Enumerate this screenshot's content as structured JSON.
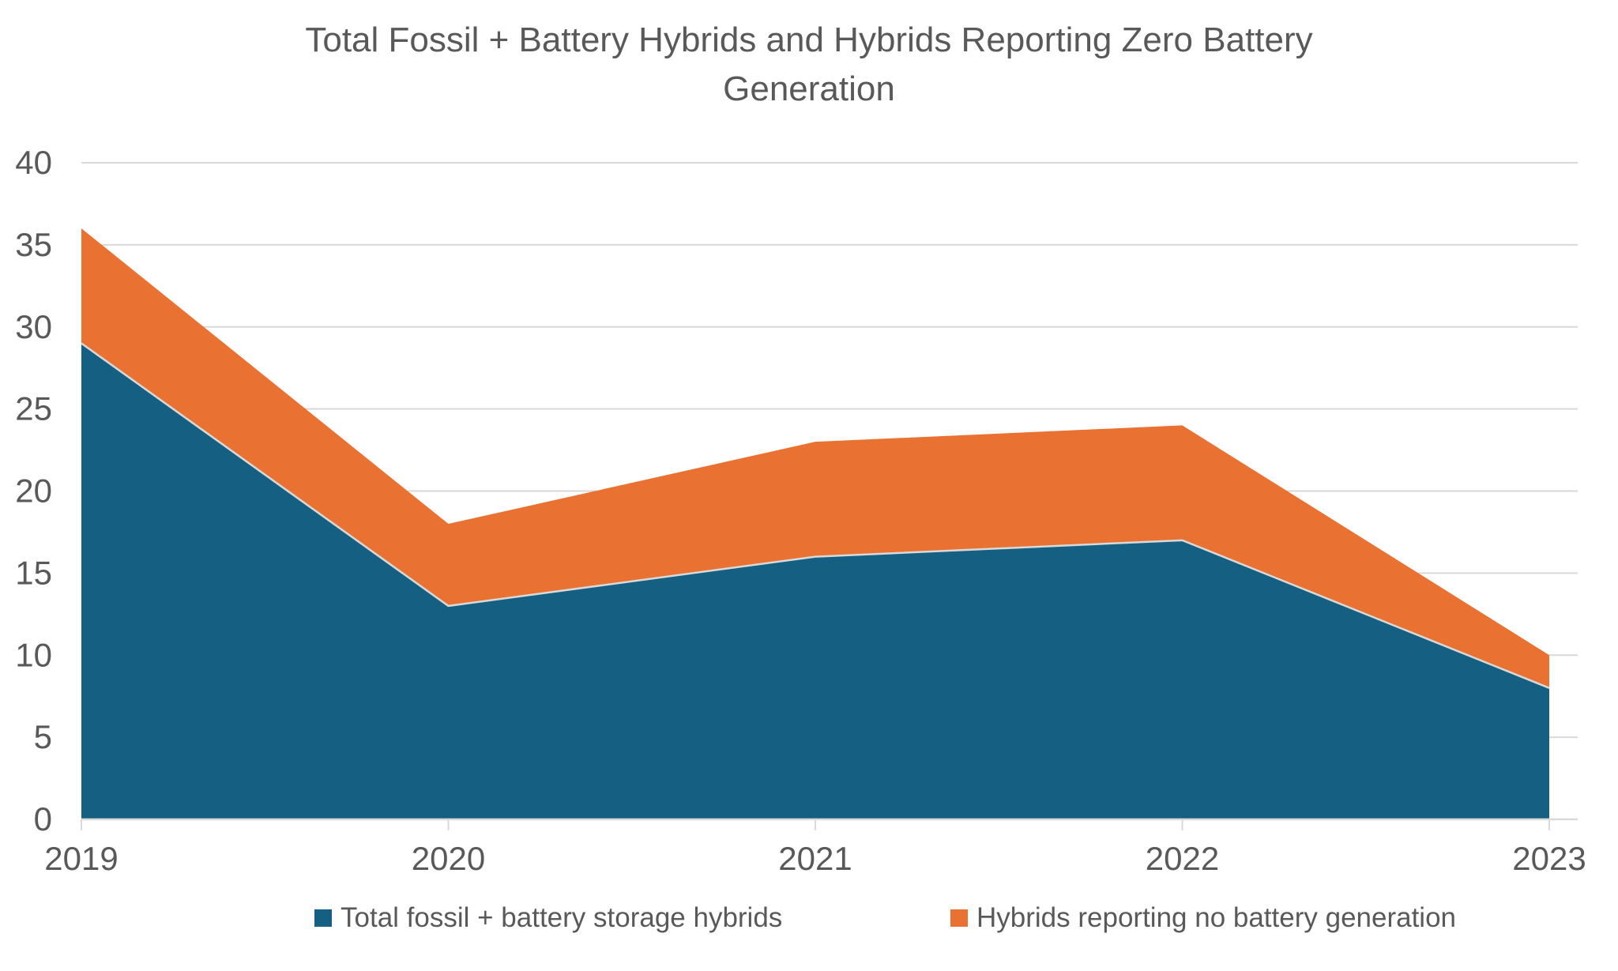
{
  "title": "Total Fossil + Battery Hybrids and Hybrids Reporting Zero Battery Generation",
  "title_lines": [
    "Total Fossil + Battery Hybrids and Hybrids Reporting Zero Battery",
    "Generation"
  ],
  "colors": {
    "series_blue": "#156082",
    "series_orange": "#E97132",
    "grid": "#D9D9D9",
    "axis_text": "#595959",
    "title_text": "#595959"
  },
  "chart_data": {
    "type": "area",
    "stacked": true,
    "title": "Total Fossil + Battery Hybrids and Hybrids Reporting Zero Battery Generation",
    "categories": [
      "2019",
      "2020",
      "2021",
      "2022",
      "2023"
    ],
    "series": [
      {
        "name": "Total fossil + battery storage hybrids",
        "color": "#156082",
        "values": [
          29,
          13,
          16,
          17,
          8
        ]
      },
      {
        "name": "Hybrids reporting no battery generation",
        "color": "#E97132",
        "values": [
          7,
          5,
          7,
          7,
          2
        ]
      }
    ],
    "stacked_totals": [
      36,
      18,
      23,
      24,
      10
    ],
    "xlabel": "",
    "ylabel": "",
    "ylim": [
      0,
      40
    ],
    "yticks": [
      0,
      5,
      10,
      15,
      20,
      25,
      30,
      35,
      40
    ],
    "grid": true,
    "legend_position": "bottom"
  },
  "legend": {
    "items": [
      {
        "label": "Total fossil + battery storage hybrids",
        "color": "#156082"
      },
      {
        "label": "Hybrids reporting no battery generation",
        "color": "#E97132"
      }
    ]
  }
}
